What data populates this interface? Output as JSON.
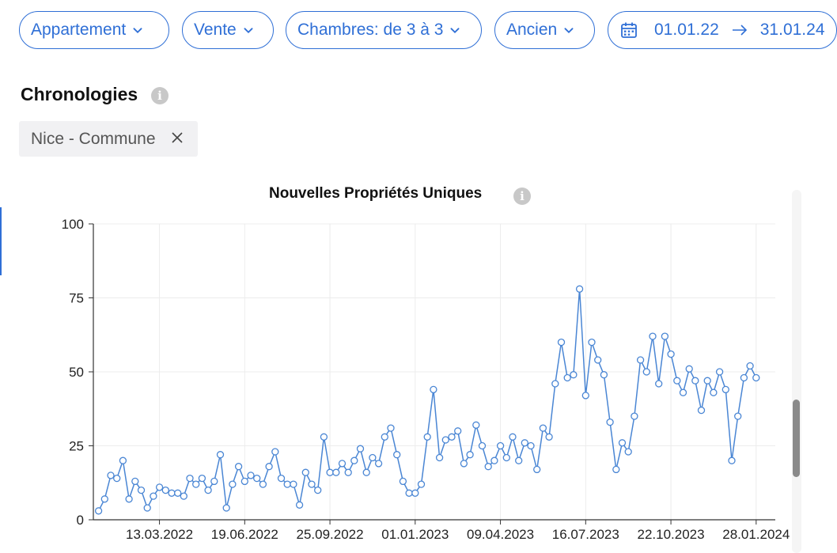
{
  "filters": {
    "property_type": "Appartement",
    "transaction": "Vente",
    "bedrooms": "Chambres: de 3 à 3",
    "condition": "Ancien",
    "date_from": "01.01.22",
    "date_to": "31.01.24"
  },
  "icons": {
    "chevron": "chevron-down-icon",
    "calendar": "calendar-icon",
    "arrow": "arrow-right-icon",
    "info": "info-icon",
    "close": "close-icon"
  },
  "colors": {
    "accent": "#2f6fd6",
    "series": "#4a86d4"
  },
  "section": {
    "title": "Chronologies",
    "chip_label": "Nice - Commune"
  },
  "chart_data": {
    "type": "line",
    "title": "Nouvelles Propriétés Uniques",
    "xlabel": "",
    "ylabel": "",
    "ylim": [
      0,
      100
    ],
    "yticks": [
      0,
      25,
      50,
      75,
      100
    ],
    "xlim": [
      "2021-12-27",
      "2024-02-19"
    ],
    "xticks": [
      "2022-03-13",
      "2022-06-19",
      "2022-09-25",
      "2023-01-01",
      "2023-04-09",
      "2023-07-16",
      "2023-10-22",
      "2024-01-28"
    ],
    "xtick_labels": [
      "13.03.2022",
      "19.06.2022",
      "25.09.2022",
      "01.01.2023",
      "09.04.2023",
      "16.07.2023",
      "22.10.2023",
      "28.01.2024"
    ],
    "grid": true,
    "x_start": "2022-01-02",
    "x_step_days": 7,
    "series": [
      {
        "values": [
          3,
          7,
          15,
          14,
          20,
          7,
          13,
          10,
          4,
          8,
          11,
          10,
          9,
          9,
          8,
          14,
          12,
          14,
          10,
          13,
          22,
          4,
          12,
          18,
          13,
          15,
          14,
          12,
          18,
          23,
          14,
          12,
          12,
          5,
          16,
          12,
          10,
          28,
          16,
          16,
          19,
          16,
          20,
          24,
          16,
          21,
          19,
          28,
          31,
          22,
          13,
          9,
          9,
          12,
          28,
          44,
          21,
          27,
          28,
          30,
          19,
          22,
          32,
          25,
          18,
          20,
          25,
          21,
          28,
          20,
          26,
          25,
          17,
          31,
          28,
          46,
          60,
          48,
          49,
          78,
          42,
          60,
          54,
          49,
          33,
          17,
          26,
          23,
          35,
          54,
          50,
          62,
          46,
          62,
          56,
          47,
          43,
          51,
          47,
          37,
          47,
          43,
          50,
          44,
          20,
          35,
          48,
          52,
          48
        ]
      }
    ]
  }
}
